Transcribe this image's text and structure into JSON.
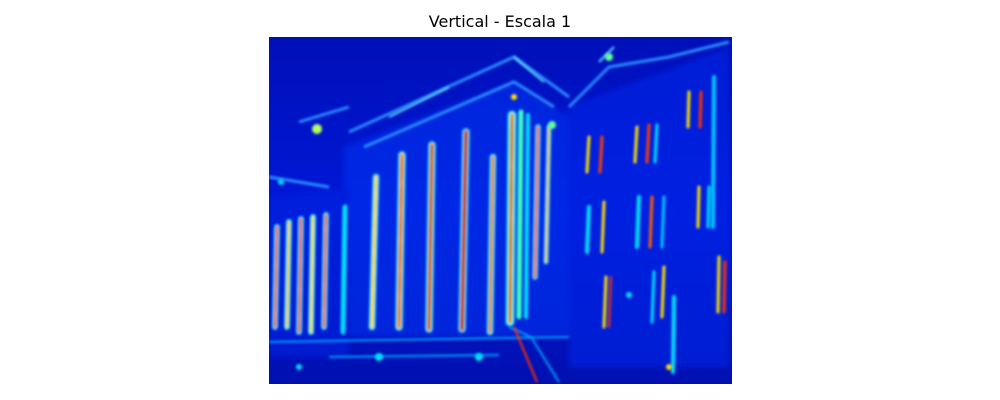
{
  "figure": {
    "title": "Vertical - Escala 1"
  },
  "image": {
    "description_name": "vertical-edge-response-map",
    "colormap": "jet",
    "colors": {
      "background": "#0012c8",
      "low": "#00008f",
      "mid_low": "#0050ff",
      "mid": "#00e0ff",
      "mid_high": "#ffff00",
      "high": "#d00000"
    }
  }
}
